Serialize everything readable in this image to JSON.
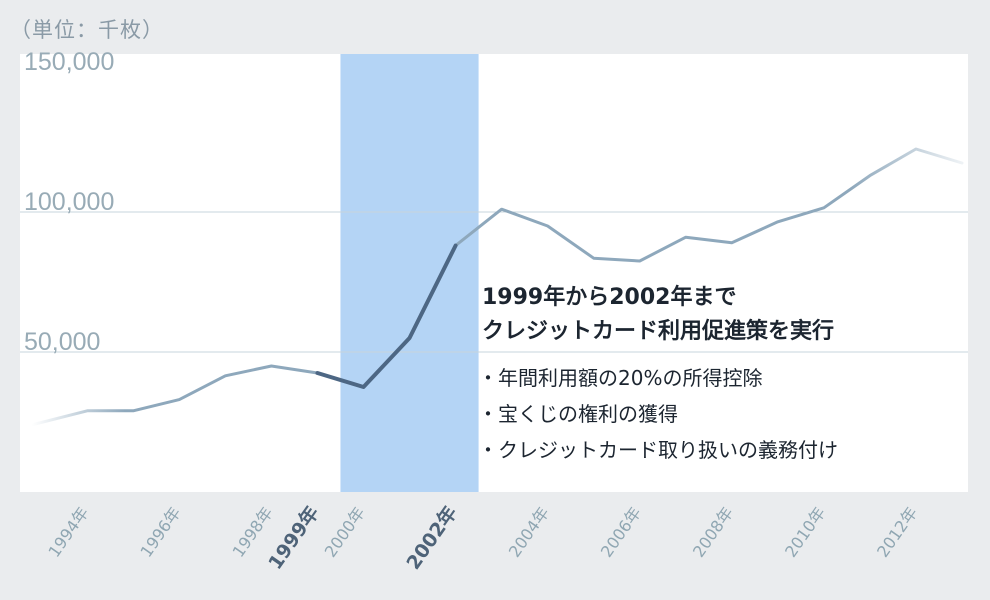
{
  "unit_label": "（単位：千枚）",
  "chart_data": {
    "type": "line",
    "y_ticks": [
      50000,
      100000,
      150000
    ],
    "y_tick_labels": [
      "50,000",
      "100,000",
      "150,000"
    ],
    "ylim": [
      0,
      150000
    ],
    "x_range": [
      1993.3,
      2013.5
    ],
    "x_tick_labels": [
      {
        "year": 1994,
        "label": "1994年",
        "highlight": false
      },
      {
        "year": 1996,
        "label": "1996年",
        "highlight": false
      },
      {
        "year": 1998,
        "label": "1998年",
        "highlight": false
      },
      {
        "year": 1999,
        "label": "1999年",
        "highlight": true
      },
      {
        "year": 2000,
        "label": "2000年",
        "highlight": false
      },
      {
        "year": 2002,
        "label": "2002年",
        "highlight": true
      },
      {
        "year": 2004,
        "label": "2004年",
        "highlight": false
      },
      {
        "year": 2006,
        "label": "2006年",
        "highlight": false
      },
      {
        "year": 2008,
        "label": "2008年",
        "highlight": false
      },
      {
        "year": 2010,
        "label": "2010年",
        "highlight": false
      },
      {
        "year": 2012,
        "label": "2012年",
        "highlight": false
      }
    ],
    "series": [
      {
        "x": [
          1993.3,
          1994.5,
          1995.5,
          1996.5,
          1997.5,
          1998.5,
          1999.5,
          2000.5,
          2001.5,
          2002.5,
          2003.5,
          2004.5,
          2005.5,
          2006.5,
          2007.5,
          2008.5,
          2009.5,
          2010.5,
          2011.5,
          2012.5,
          2013.5
        ],
        "values": [
          24000,
          29000,
          29000,
          33000,
          41500,
          45000,
          42500,
          37500,
          55000,
          88000,
          101000,
          95000,
          83500,
          82500,
          91000,
          89000,
          96500,
          101500,
          113000,
          122500,
          117500
        ]
      }
    ],
    "highlight_range": [
      2000.0,
      2003.0
    ],
    "colors": {
      "line": "#8ea8bc",
      "line_highlight": "#4d6784",
      "band": "#b4d4f5",
      "plot_bg": "#ffffff",
      "page_bg": "#eaecee",
      "grid": "#c7d5dc"
    },
    "grid": true,
    "annotation": {
      "title_lines": [
        "1999年から2002年まで",
        "クレジットカード利用促進策を実行"
      ],
      "bullets": [
        "・年間利用額の20%の所得控除",
        "・宝くじの権利の獲得",
        "・クレジットカード取り扱いの義務付け"
      ]
    }
  }
}
